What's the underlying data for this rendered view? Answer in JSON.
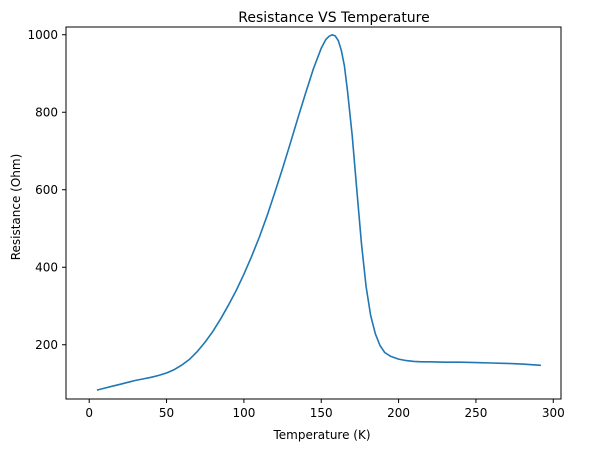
{
  "chart_data": {
    "type": "line",
    "title": "Resistance VS Temperature",
    "xlabel": "Temperature (K)",
    "ylabel": "Resistance (Ohm)",
    "xlim": [
      -15,
      305
    ],
    "ylim": [
      60,
      1020
    ],
    "xticks": [
      0,
      50,
      100,
      150,
      200,
      250,
      300
    ],
    "yticks": [
      200,
      400,
      600,
      800,
      1000
    ],
    "grid": false,
    "series": [
      {
        "color": "#1f77b4",
        "x": [
          5,
          10,
          15,
          20,
          25,
          30,
          35,
          40,
          45,
          50,
          55,
          60,
          65,
          70,
          75,
          80,
          85,
          90,
          95,
          100,
          105,
          110,
          115,
          120,
          125,
          130,
          135,
          140,
          145,
          150,
          153,
          155,
          157,
          159,
          161,
          163,
          165,
          167,
          170,
          173,
          176,
          179,
          182,
          185,
          188,
          191,
          195,
          200,
          205,
          210,
          215,
          220,
          230,
          240,
          250,
          260,
          270,
          280,
          292
        ],
        "y": [
          83,
          88,
          93,
          98,
          103,
          108,
          112,
          116,
          121,
          127,
          136,
          148,
          163,
          183,
          207,
          235,
          267,
          302,
          340,
          382,
          428,
          478,
          533,
          593,
          655,
          720,
          786,
          851,
          913,
          965,
          988,
          996,
          1000,
          997,
          985,
          960,
          920,
          855,
          740,
          600,
          460,
          350,
          275,
          228,
          198,
          180,
          170,
          163,
          159,
          157,
          156,
          156,
          155,
          155,
          154,
          153,
          152,
          150,
          147
        ]
      }
    ]
  }
}
